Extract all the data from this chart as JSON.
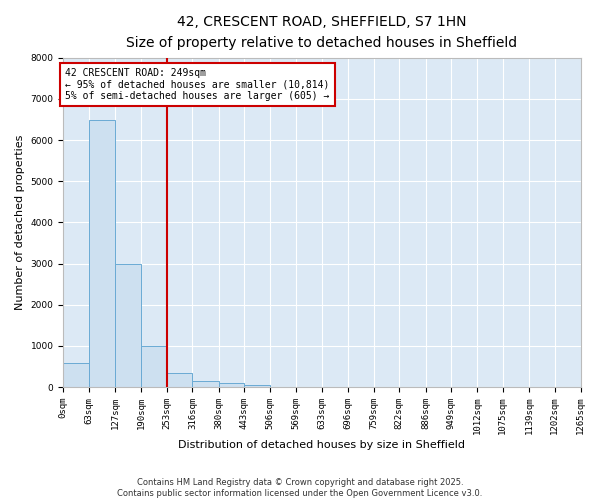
{
  "title1": "42, CRESCENT ROAD, SHEFFIELD, S7 1HN",
  "title2": "Size of property relative to detached houses in Sheffield",
  "xlabel": "Distribution of detached houses by size in Sheffield",
  "ylabel": "Number of detached properties",
  "bar_color": "#cde0f0",
  "bar_edge_color": "#6aaad4",
  "background_color": "#dce9f5",
  "grid_color": "#ffffff",
  "bins": [
    0,
    63,
    127,
    190,
    253,
    316,
    380,
    443,
    506,
    569,
    633,
    696,
    759,
    822,
    886,
    949,
    1012,
    1075,
    1139,
    1202,
    1265
  ],
  "counts": [
    580,
    6480,
    2980,
    990,
    345,
    148,
    95,
    48,
    0,
    0,
    0,
    0,
    0,
    0,
    0,
    0,
    0,
    0,
    0,
    0
  ],
  "vline_x": 253,
  "vline_color": "#cc0000",
  "annotation_line1": "42 CRESCENT ROAD: 249sqm",
  "annotation_line2": "← 95% of detached houses are smaller (10,814)",
  "annotation_line3": "5% of semi-detached houses are larger (605) →",
  "annotation_box_color": "#cc0000",
  "ylim": [
    0,
    8000
  ],
  "yticks": [
    0,
    1000,
    2000,
    3000,
    4000,
    5000,
    6000,
    7000,
    8000
  ],
  "footer_text": "Contains HM Land Registry data © Crown copyright and database right 2025.\nContains public sector information licensed under the Open Government Licence v3.0.",
  "tick_label_fontsize": 6.5,
  "axis_label_fontsize": 8,
  "title_fontsize1": 10,
  "title_fontsize2": 9,
  "annotation_fontsize": 7
}
